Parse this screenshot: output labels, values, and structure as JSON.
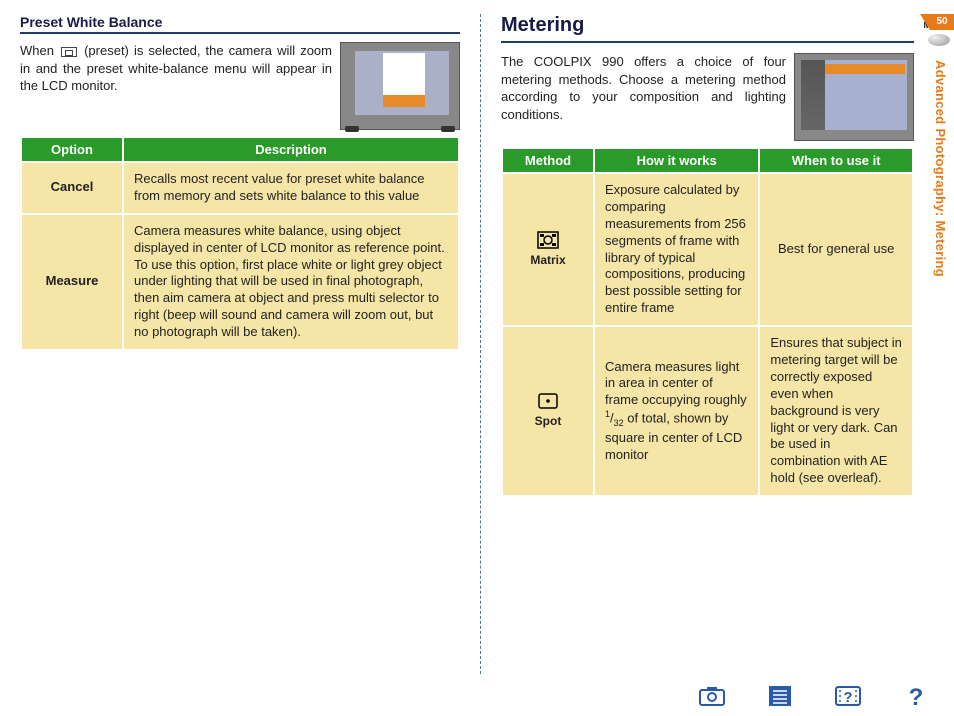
{
  "page_number": "50",
  "menu_label": "MENU",
  "section_tab": "Advanced Photography: Metering",
  "left": {
    "title": "Preset White Balance",
    "intro_pre": "When ",
    "intro_post": " (preset) is selected, the camera will zoom in and the preset white-balance menu will appear in the LCD monitor.",
    "table": {
      "headers": [
        "Option",
        "Description"
      ],
      "rows": [
        {
          "option": "Cancel",
          "description": "Recalls most recent value for preset white balance from memory and sets white balance to this value"
        },
        {
          "option": "Measure",
          "description": "Camera measures white balance, using object displayed in center of LCD monitor as reference point.  To use this option, first place white or light grey object under lighting that will be used in final photograph, then aim camera at object and press multi selector to right (beep will sound and camera will zoom out, but no photograph will be taken)."
        }
      ]
    }
  },
  "right": {
    "title": "Metering",
    "intro": "The COOLPIX 990 offers a choice of four metering methods.  Choose a metering method according to your composition and lighting conditions.",
    "table": {
      "headers": [
        "Method",
        "How it works",
        "When to use it"
      ],
      "rows": [
        {
          "method": "Matrix",
          "icon": "matrix-icon",
          "how": "Exposure calculated by comparing measurements from 256 segments of frame with library of typical compositions, producing best possible setting for entire frame",
          "when": "Best for general use"
        },
        {
          "method": "Spot",
          "icon": "spot-icon",
          "how_html": "Camera measures light in area in center of frame occupying roughly <sup>1</sup>/<sub>32</sub> of total, shown by square in center of LCD monitor",
          "when": "Ensures that subject in metering target will be correctly exposed even when background is very light or very dark.  Can be used in combination with AE hold (see overleaf)."
        }
      ]
    }
  },
  "colors": {
    "header_green": "#2a9a2a",
    "cell_yellow": "#f5e5a6",
    "accent_orange": "#e87a1a",
    "rule_blue": "#1a3d6d",
    "icon_blue": "#2a5aaa"
  }
}
